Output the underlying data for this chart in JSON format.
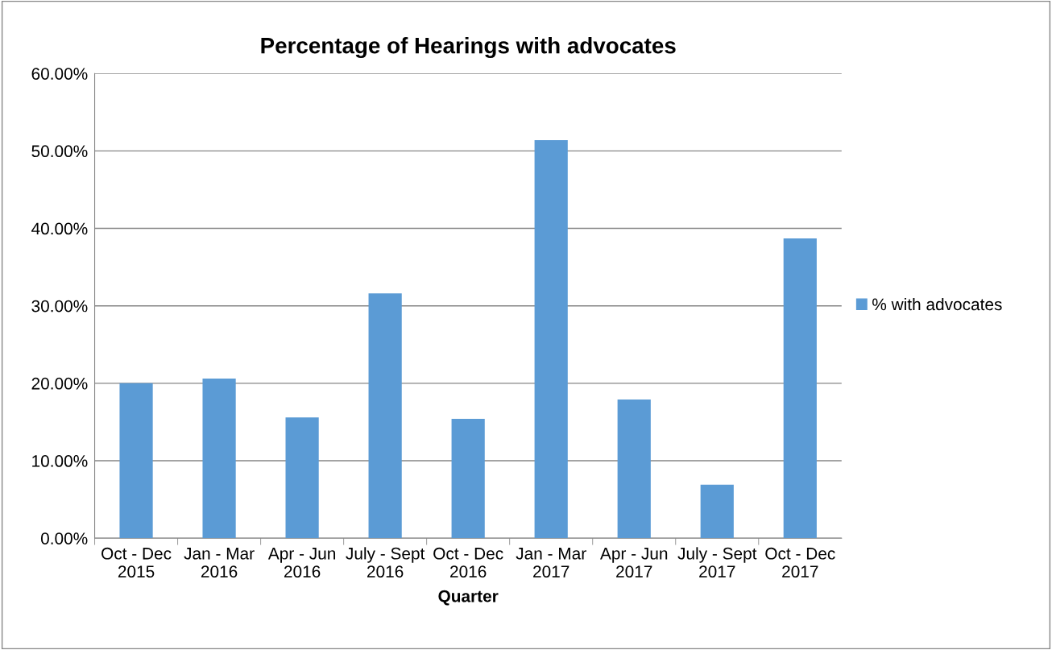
{
  "chart_data": {
    "type": "bar",
    "title": "Percentage of Hearings with advocates",
    "xlabel": "Quarter",
    "categories": [
      "Oct - Dec\n2015",
      "Jan - Mar\n2016",
      "Apr - Jun\n2016",
      "July - Sept\n2016",
      "Oct - Dec\n2016",
      "Jan - Mar\n2017",
      "Apr - Jun\n2017",
      "July - Sept\n2017",
      "Oct - Dec\n2017"
    ],
    "series": [
      {
        "name": "% with advocates",
        "color": "#5b9bd5",
        "values": [
          20.0,
          20.6,
          15.6,
          31.6,
          15.4,
          51.4,
          17.9,
          6.9,
          38.7
        ]
      }
    ],
    "ylim": [
      0,
      60
    ],
    "yticks": [
      {
        "value": 0,
        "label": "0.00%"
      },
      {
        "value": 10,
        "label": "10.00%"
      },
      {
        "value": 20,
        "label": "20.00%"
      },
      {
        "value": 30,
        "label": "30.00%"
      },
      {
        "value": 40,
        "label": "40.00%"
      },
      {
        "value": 50,
        "label": "50.00%"
      },
      {
        "value": 60,
        "label": "60.00%"
      }
    ],
    "grid": "y",
    "legend": "right"
  }
}
